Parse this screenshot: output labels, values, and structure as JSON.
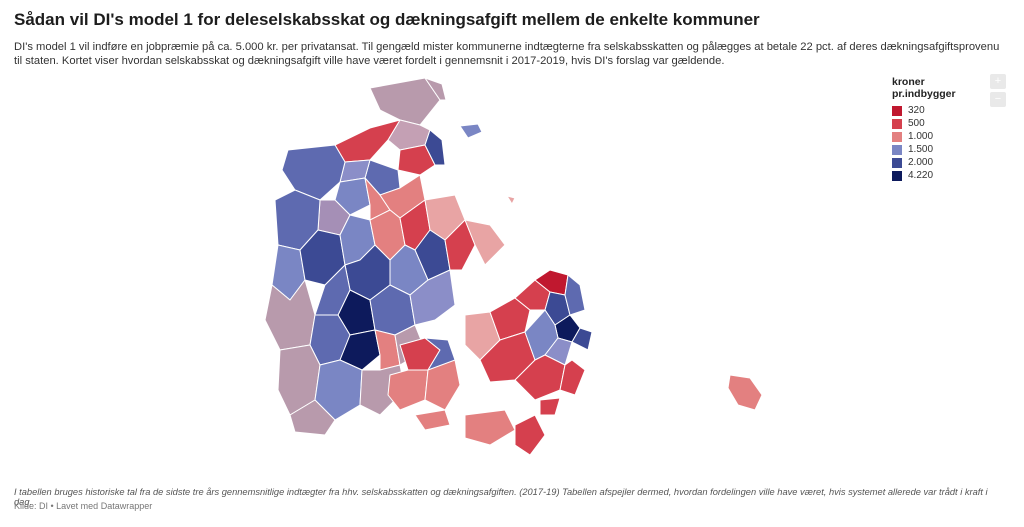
{
  "header": {
    "title": "Sådan vil DI's model 1 for deleselskabsskat og dækningsafgift mellem de enkelte kommuner",
    "subtitle": "DI's model 1 vil indføre en jobpræmie på ca. 5.000 kr. per privatansat. Til gengæld mister kommunerne indtægterne fra selskabsskatten og pålægges at betale 22 pct. af deres dækningsafgiftsprovenu til staten. Kortet viser hvordan selskabsskat og dækningsafgift ville have været fordelt i gennemsnit i 2017-2019, hvis DI's forslag var gældende."
  },
  "legend": {
    "title": "kroner pr.indbygger",
    "items": [
      {
        "label": "320",
        "color": "#c0182f"
      },
      {
        "label": "500",
        "color": "#d5404e"
      },
      {
        "label": "1.000",
        "color": "#e38080"
      },
      {
        "label": "1.500",
        "color": "#7a86c4"
      },
      {
        "label": "2.000",
        "color": "#3c4a94"
      },
      {
        "label": "4.220",
        "color": "#0d1a5c"
      }
    ]
  },
  "zoom": {
    "in_label": "+",
    "out_label": "−"
  },
  "footer": {
    "notes": "I tabellen bruges historiske tal fra de sidste tre års gennemsnitlige indtægter fra hhv. selskabsskatten og dækningsafgiften. (2017-19) Tabellen afspejler dermed, hvordan fordelingen ville have været, hvis systemet allerede var trådt i kraft i dag.",
    "source": "Kilde: DI • Lavet med Datawrapper"
  }
}
